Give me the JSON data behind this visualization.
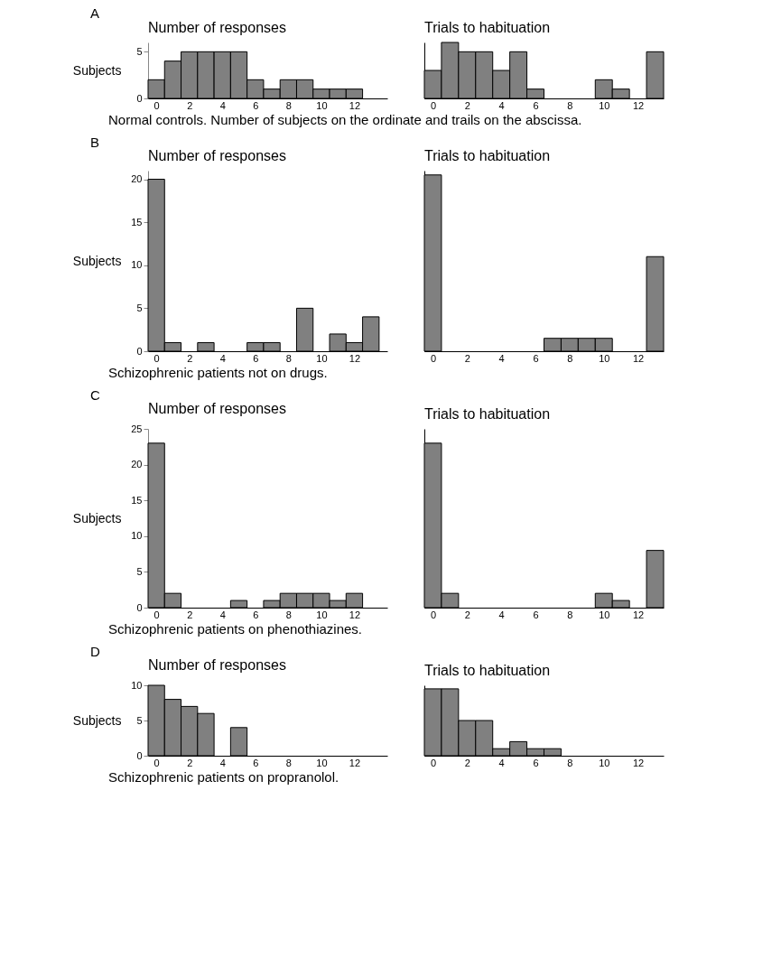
{
  "chart_data": [
    {
      "type": "histogram",
      "title": "Number of responses",
      "ylabel": "Subjects",
      "annotations": [
        "A",
        "Normal controls. Number of subjects on the ordinate and trails on the abscissa."
      ],
      "color": "#808080",
      "bins": [
        -0.5,
        0.5,
        1.5,
        2.5,
        3.5,
        4.5,
        5.5,
        6.5,
        7.5,
        8.5,
        9.5,
        10.5,
        11.5,
        12.5
      ],
      "values": [
        2,
        4,
        5,
        5,
        5,
        5,
        2,
        1,
        2,
        2,
        1,
        1,
        1
      ],
      "xlim": [
        -0.5,
        14
      ],
      "xticks": [
        0,
        2,
        4,
        6,
        8,
        10,
        12
      ],
      "ylim": [
        0,
        6
      ],
      "yticks": [
        0,
        5
      ]
    },
    {
      "type": "histogram",
      "title": "Trials to habituation",
      "tick_labels": "x",
      "color": "#808080",
      "bins": [
        -0.5,
        0.5,
        1.5,
        2.5,
        3.5,
        4.5,
        5.5,
        6.5,
        7.5,
        8.5,
        9.5,
        10.5,
        11.5,
        12.5,
        13.5
      ],
      "values": [
        3,
        6,
        5,
        5,
        3,
        5,
        1,
        0,
        0,
        0,
        2,
        1,
        0,
        5
      ],
      "xlim": [
        -0.5,
        13.5
      ],
      "xticks": [
        0,
        2,
        4,
        6,
        8,
        10,
        12
      ],
      "ylim": [
        0,
        6
      ]
    },
    {
      "type": "histogram",
      "title": "Number of responses",
      "ylabel": "Subjects",
      "annotations": [
        "B",
        "Schizophrenic patients not on drugs."
      ],
      "color": "#808080",
      "bins": [
        -0.5,
        0.5,
        1.5,
        2.5,
        3.5,
        4.5,
        5.5,
        6.5,
        7.5,
        8.5,
        9.5,
        10.5,
        11.5,
        12.5,
        13.5
      ],
      "values": [
        20,
        1,
        0,
        1,
        0,
        0,
        1,
        1,
        0,
        5,
        0,
        2,
        1,
        4
      ],
      "xlim": [
        -0.5,
        14
      ],
      "xticks": [
        0,
        2,
        4,
        6,
        8,
        10,
        12
      ],
      "ylim": [
        0,
        21
      ],
      "yticks": [
        0,
        5,
        10,
        15,
        20
      ]
    },
    {
      "type": "histogram",
      "title": "Trials to habituation",
      "tick_labels": "x",
      "color": "#808080",
      "bins": [
        -0.5,
        0.5,
        1.5,
        2.5,
        3.5,
        4.5,
        5.5,
        6.5,
        7.5,
        8.5,
        9.5,
        10.5,
        11.5,
        12.5,
        13.5
      ],
      "values": [
        20.5,
        0,
        0,
        0,
        0,
        0,
        0,
        1.5,
        1.5,
        1.5,
        1.5,
        0,
        0,
        11
      ],
      "xlim": [
        -0.5,
        13.5
      ],
      "xticks": [
        0,
        2,
        4,
        6,
        8,
        10,
        12
      ],
      "ylim": [
        0,
        21
      ]
    },
    {
      "type": "histogram",
      "title": "Number of responses",
      "ylabel": "Subjects",
      "annotations": [
        "C",
        "Schizophrenic patients on phenothiazines."
      ],
      "color": "#808080",
      "bins": [
        -0.5,
        0.5,
        1.5,
        2.5,
        3.5,
        4.5,
        5.5,
        6.5,
        7.5,
        8.5,
        9.5,
        10.5,
        11.5,
        12.5
      ],
      "values": [
        23,
        2,
        0,
        0,
        0,
        1,
        0,
        1,
        2,
        2,
        2,
        1,
        2
      ],
      "xlim": [
        -0.5,
        14
      ],
      "xticks": [
        0,
        2,
        4,
        6,
        8,
        10,
        12
      ],
      "ylim": [
        0,
        25
      ],
      "yticks": [
        0,
        5,
        10,
        15,
        20,
        25
      ]
    },
    {
      "type": "histogram",
      "title": "Trials to habituation",
      "tick_labels": "x",
      "color": "#808080",
      "bins": [
        -0.5,
        0.5,
        1.5,
        2.5,
        3.5,
        4.5,
        5.5,
        6.5,
        7.5,
        8.5,
        9.5,
        10.5,
        11.5,
        12.5,
        13.5
      ],
      "values": [
        23,
        2,
        0,
        0,
        0,
        0,
        0,
        0,
        0,
        0,
        2,
        1,
        0,
        8
      ],
      "xlim": [
        -0.5,
        13.5
      ],
      "xticks": [
        0,
        2,
        4,
        6,
        8,
        10,
        12
      ],
      "ylim": [
        0,
        25
      ]
    },
    {
      "type": "histogram",
      "title": "Number of responses",
      "ylabel": "Subjects",
      "annotations": [
        "D",
        "Schizophrenic patients on propranolol."
      ],
      "color": "#808080",
      "bins": [
        -0.5,
        0.5,
        1.5,
        2.5,
        3.5,
        4.5,
        5.5
      ],
      "values": [
        10,
        8,
        7,
        6,
        0,
        4
      ],
      "xlim": [
        -0.5,
        14
      ],
      "xticks": [
        0,
        2,
        4,
        6,
        8,
        10,
        12
      ],
      "ylim": [
        0,
        10
      ],
      "yticks": [
        0,
        5,
        10
      ]
    },
    {
      "type": "histogram",
      "title": "Trials to habituation",
      "tick_labels": "x",
      "color": "#808080",
      "bins": [
        -0.5,
        0.5,
        1.5,
        2.5,
        3.5,
        4.5,
        5.5,
        6.5,
        7.5
      ],
      "values": [
        9.5,
        9.5,
        5,
        5,
        1,
        2,
        1,
        1
      ],
      "xlim": [
        -0.5,
        13.5
      ],
      "xticks": [
        0,
        2,
        4,
        6,
        8,
        10,
        12
      ],
      "ylim": [
        0,
        10
      ]
    }
  ]
}
